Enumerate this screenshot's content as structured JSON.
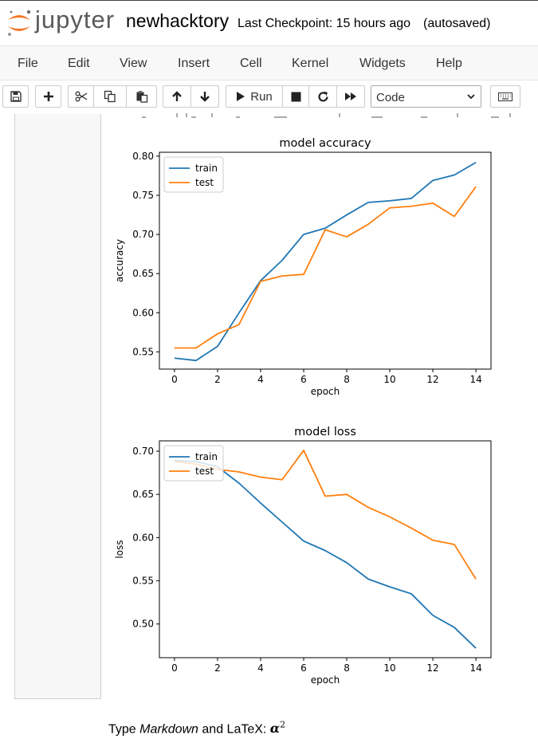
{
  "header": {
    "logo_text": "jupyter",
    "notebook_name": "newhacktory",
    "checkpoint": "Last Checkpoint: 15 hours ago",
    "autosave": "(autosaved)"
  },
  "menu": [
    "File",
    "Edit",
    "View",
    "Insert",
    "Cell",
    "Kernel",
    "Widgets",
    "Help"
  ],
  "toolbar": {
    "run_label": "Run",
    "cell_type": "Code",
    "icons": [
      "save-icon",
      "plus-icon",
      "cut-icon",
      "copy-icon",
      "paste-icon",
      "arrow-up-icon",
      "arrow-down-icon",
      "play-icon",
      "stop-icon",
      "restart-icon",
      "fast-forward-icon",
      "keyboard-icon"
    ]
  },
  "markdown": {
    "prefix": "Type ",
    "italic": "Markdown",
    "middle": " and LaTeX: ",
    "math": "α",
    "exp": "2"
  },
  "colors": {
    "train": "#1f77b4",
    "test": "#ff7f0e"
  },
  "chart_data": [
    {
      "type": "line",
      "title": "model accuracy",
      "xlabel": "epoch",
      "ylabel": "accuracy",
      "x": [
        0,
        1,
        2,
        3,
        4,
        5,
        6,
        7,
        8,
        9,
        10,
        11,
        12,
        13,
        14
      ],
      "xticks": [
        0,
        2,
        4,
        6,
        8,
        10,
        12,
        14
      ],
      "yticks": [
        0.55,
        0.6,
        0.65,
        0.7,
        0.75,
        0.8
      ],
      "xlim": [
        -0.7,
        14.7
      ],
      "ylim": [
        0.528,
        0.805
      ],
      "legend": "upper-left",
      "series": [
        {
          "name": "train",
          "values": [
            0.542,
            0.539,
            0.557,
            0.6,
            0.641,
            0.667,
            0.7,
            0.708,
            0.725,
            0.741,
            0.743,
            0.746,
            0.769,
            0.776,
            0.792
          ]
        },
        {
          "name": "test",
          "values": [
            0.555,
            0.555,
            0.573,
            0.585,
            0.64,
            0.647,
            0.649,
            0.706,
            0.697,
            0.713,
            0.734,
            0.736,
            0.74,
            0.723,
            0.761
          ]
        }
      ]
    },
    {
      "type": "line",
      "title": "model loss",
      "xlabel": "epoch",
      "ylabel": "loss",
      "x": [
        0,
        1,
        2,
        3,
        4,
        5,
        6,
        7,
        8,
        9,
        10,
        11,
        12,
        13,
        14
      ],
      "xticks": [
        0,
        2,
        4,
        6,
        8,
        10,
        12,
        14
      ],
      "yticks": [
        0.5,
        0.55,
        0.6,
        0.65,
        0.7
      ],
      "xlim": [
        -0.7,
        14.7
      ],
      "ylim": [
        0.461,
        0.712
      ],
      "legend": "upper-left",
      "series": [
        {
          "name": "train",
          "values": [
            0.689,
            0.688,
            0.682,
            0.663,
            0.64,
            0.618,
            0.596,
            0.585,
            0.571,
            0.552,
            0.543,
            0.535,
            0.51,
            0.496,
            0.472
          ]
        },
        {
          "name": "test",
          "values": [
            0.688,
            0.685,
            0.679,
            0.676,
            0.67,
            0.667,
            0.701,
            0.648,
            0.65,
            0.635,
            0.624,
            0.611,
            0.597,
            0.592,
            0.552
          ]
        }
      ]
    }
  ]
}
